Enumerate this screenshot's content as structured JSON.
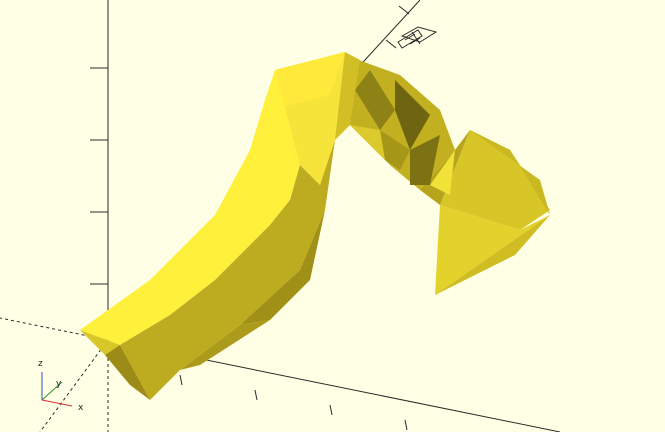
{
  "viewport": {
    "background": "#FFFFE5",
    "axis_color": "#2a2a2a",
    "model_colors": {
      "base": "#F4E434",
      "light": "#FFF24A",
      "mid": "#D9C728",
      "dark": "#8E8216",
      "shadow": "#5C530C"
    }
  },
  "axes_indicator": {
    "z_label": "z",
    "y_label": "y",
    "x_label": "x",
    "x_color": "#d03030",
    "y_color": "#2a9a2a",
    "z_color": "#3050c0"
  },
  "scale_marker_icon": "scale-ruler-icon"
}
